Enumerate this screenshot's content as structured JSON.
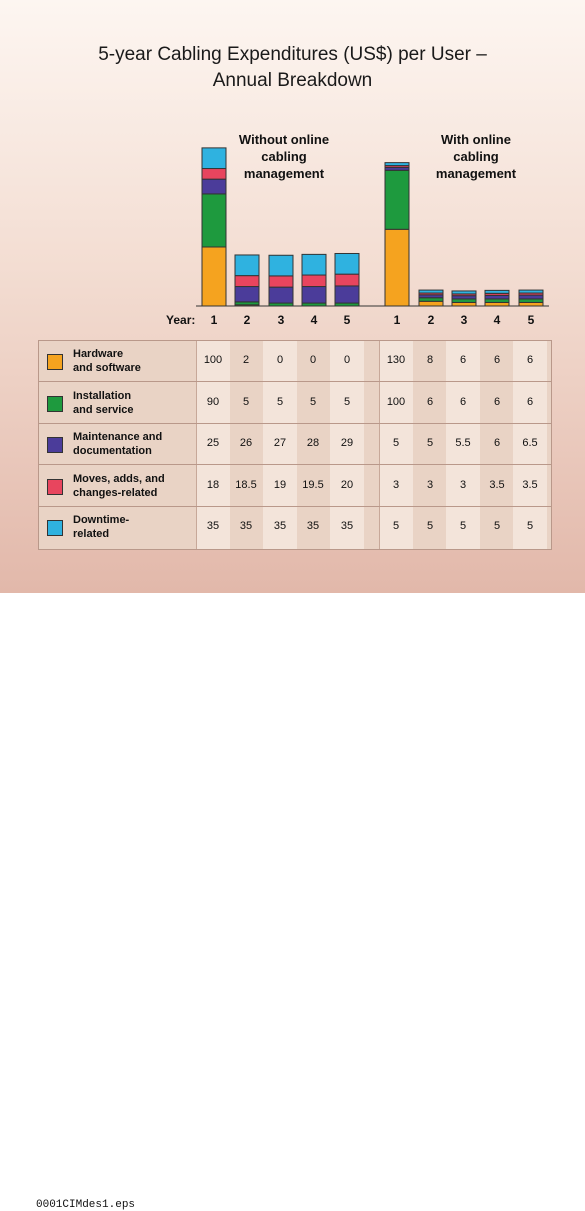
{
  "chart_data": {
    "type": "bar",
    "stacked": true,
    "title_line1": "5-year Cabling Expenditures (US$) per User –",
    "title_line2": "Annual Breakdown",
    "year_axis_label": "Year:",
    "groups": [
      {
        "label_lines": [
          "Without online",
          "cabling",
          "management"
        ],
        "years": [
          "1",
          "2",
          "3",
          "4",
          "5"
        ]
      },
      {
        "label_lines": [
          "With online",
          "cabling",
          "management"
        ],
        "years": [
          "1",
          "2",
          "3",
          "4",
          "5"
        ]
      }
    ],
    "series": [
      {
        "name_lines": [
          "Hardware",
          "and software"
        ],
        "color": "#f5a31f",
        "values": [
          [
            "100",
            "2",
            "0",
            "0",
            "0"
          ],
          [
            "130",
            "8",
            "6",
            "6",
            "6"
          ]
        ]
      },
      {
        "name_lines": [
          "Installation",
          "and service"
        ],
        "color": "#1e9a3e",
        "values": [
          [
            "90",
            "5",
            "5",
            "5",
            "5"
          ],
          [
            "100",
            "6",
            "6",
            "6",
            "6"
          ]
        ]
      },
      {
        "name_lines": [
          "Maintenance and",
          "documentation"
        ],
        "color": "#4b3c9a",
        "values": [
          [
            "25",
            "26",
            "27",
            "28",
            "29"
          ],
          [
            "5",
            "5",
            "5.5",
            "6",
            "6.5"
          ]
        ]
      },
      {
        "name_lines": [
          "Moves, adds, and",
          "changes-related"
        ],
        "color": "#e8455e",
        "values": [
          [
            "18",
            "18.5",
            "19",
            "19.5",
            "20"
          ],
          [
            "3",
            "3",
            "3",
            "3.5",
            "3.5"
          ]
        ]
      },
      {
        "name_lines": [
          "Downtime-",
          "related"
        ],
        "color": "#2fb2e0",
        "values": [
          [
            "35",
            "35",
            "35",
            "35",
            "35"
          ],
          [
            "5",
            "5",
            "5",
            "5",
            "5"
          ]
        ]
      }
    ]
  },
  "footer": {
    "filename": "0001CIMdes1.eps"
  }
}
